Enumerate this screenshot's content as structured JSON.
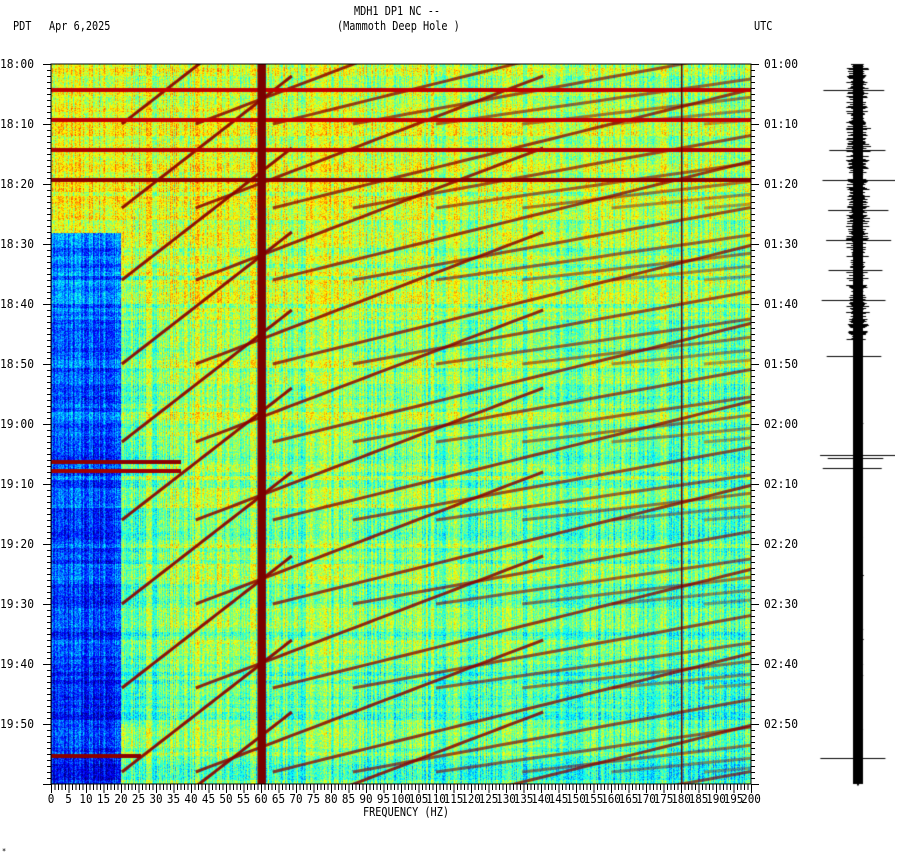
{
  "header": {
    "title": "MDH1 DP1 NC --",
    "subtitle": "(Mammoth Deep Hole )",
    "left_timezone": "PDT",
    "date": "Apr 6,2025",
    "right_timezone": "UTC"
  },
  "footer_mark": "*",
  "chart_data": {
    "type": "heatmap",
    "title": "MDH1 DP1 NC -- (Mammoth Deep Hole )",
    "xlabel": "FREQUENCY (HZ)",
    "ylabel_left": "PDT",
    "ylabel_right": "UTC",
    "xlim": [
      0,
      200
    ],
    "x_ticks": [
      "0",
      "5",
      "10",
      "15",
      "20",
      "25",
      "30",
      "35",
      "40",
      "45",
      "50",
      "55",
      "60",
      "65",
      "70",
      "75",
      "80",
      "85",
      "90",
      "95",
      "100",
      "105",
      "110",
      "115",
      "120",
      "125",
      "130",
      "135",
      "140",
      "145",
      "150",
      "155",
      "160",
      "165",
      "170",
      "175",
      "180",
      "185",
      "190",
      "195",
      "200"
    ],
    "y_ticks_left": [
      "18:00",
      "18:10",
      "18:20",
      "18:30",
      "18:40",
      "18:50",
      "19:00",
      "19:10",
      "19:20",
      "19:30",
      "19:40",
      "19:50"
    ],
    "y_ticks_right": [
      "01:00",
      "01:10",
      "01:20",
      "01:30",
      "01:40",
      "01:50",
      "02:00",
      "02:10",
      "02:20",
      "02:30",
      "02:40",
      "02:50"
    ],
    "time_span_minutes": 120,
    "persistent_lines_hz": [
      60,
      180
    ],
    "colormap": "jet",
    "grid": false
  }
}
